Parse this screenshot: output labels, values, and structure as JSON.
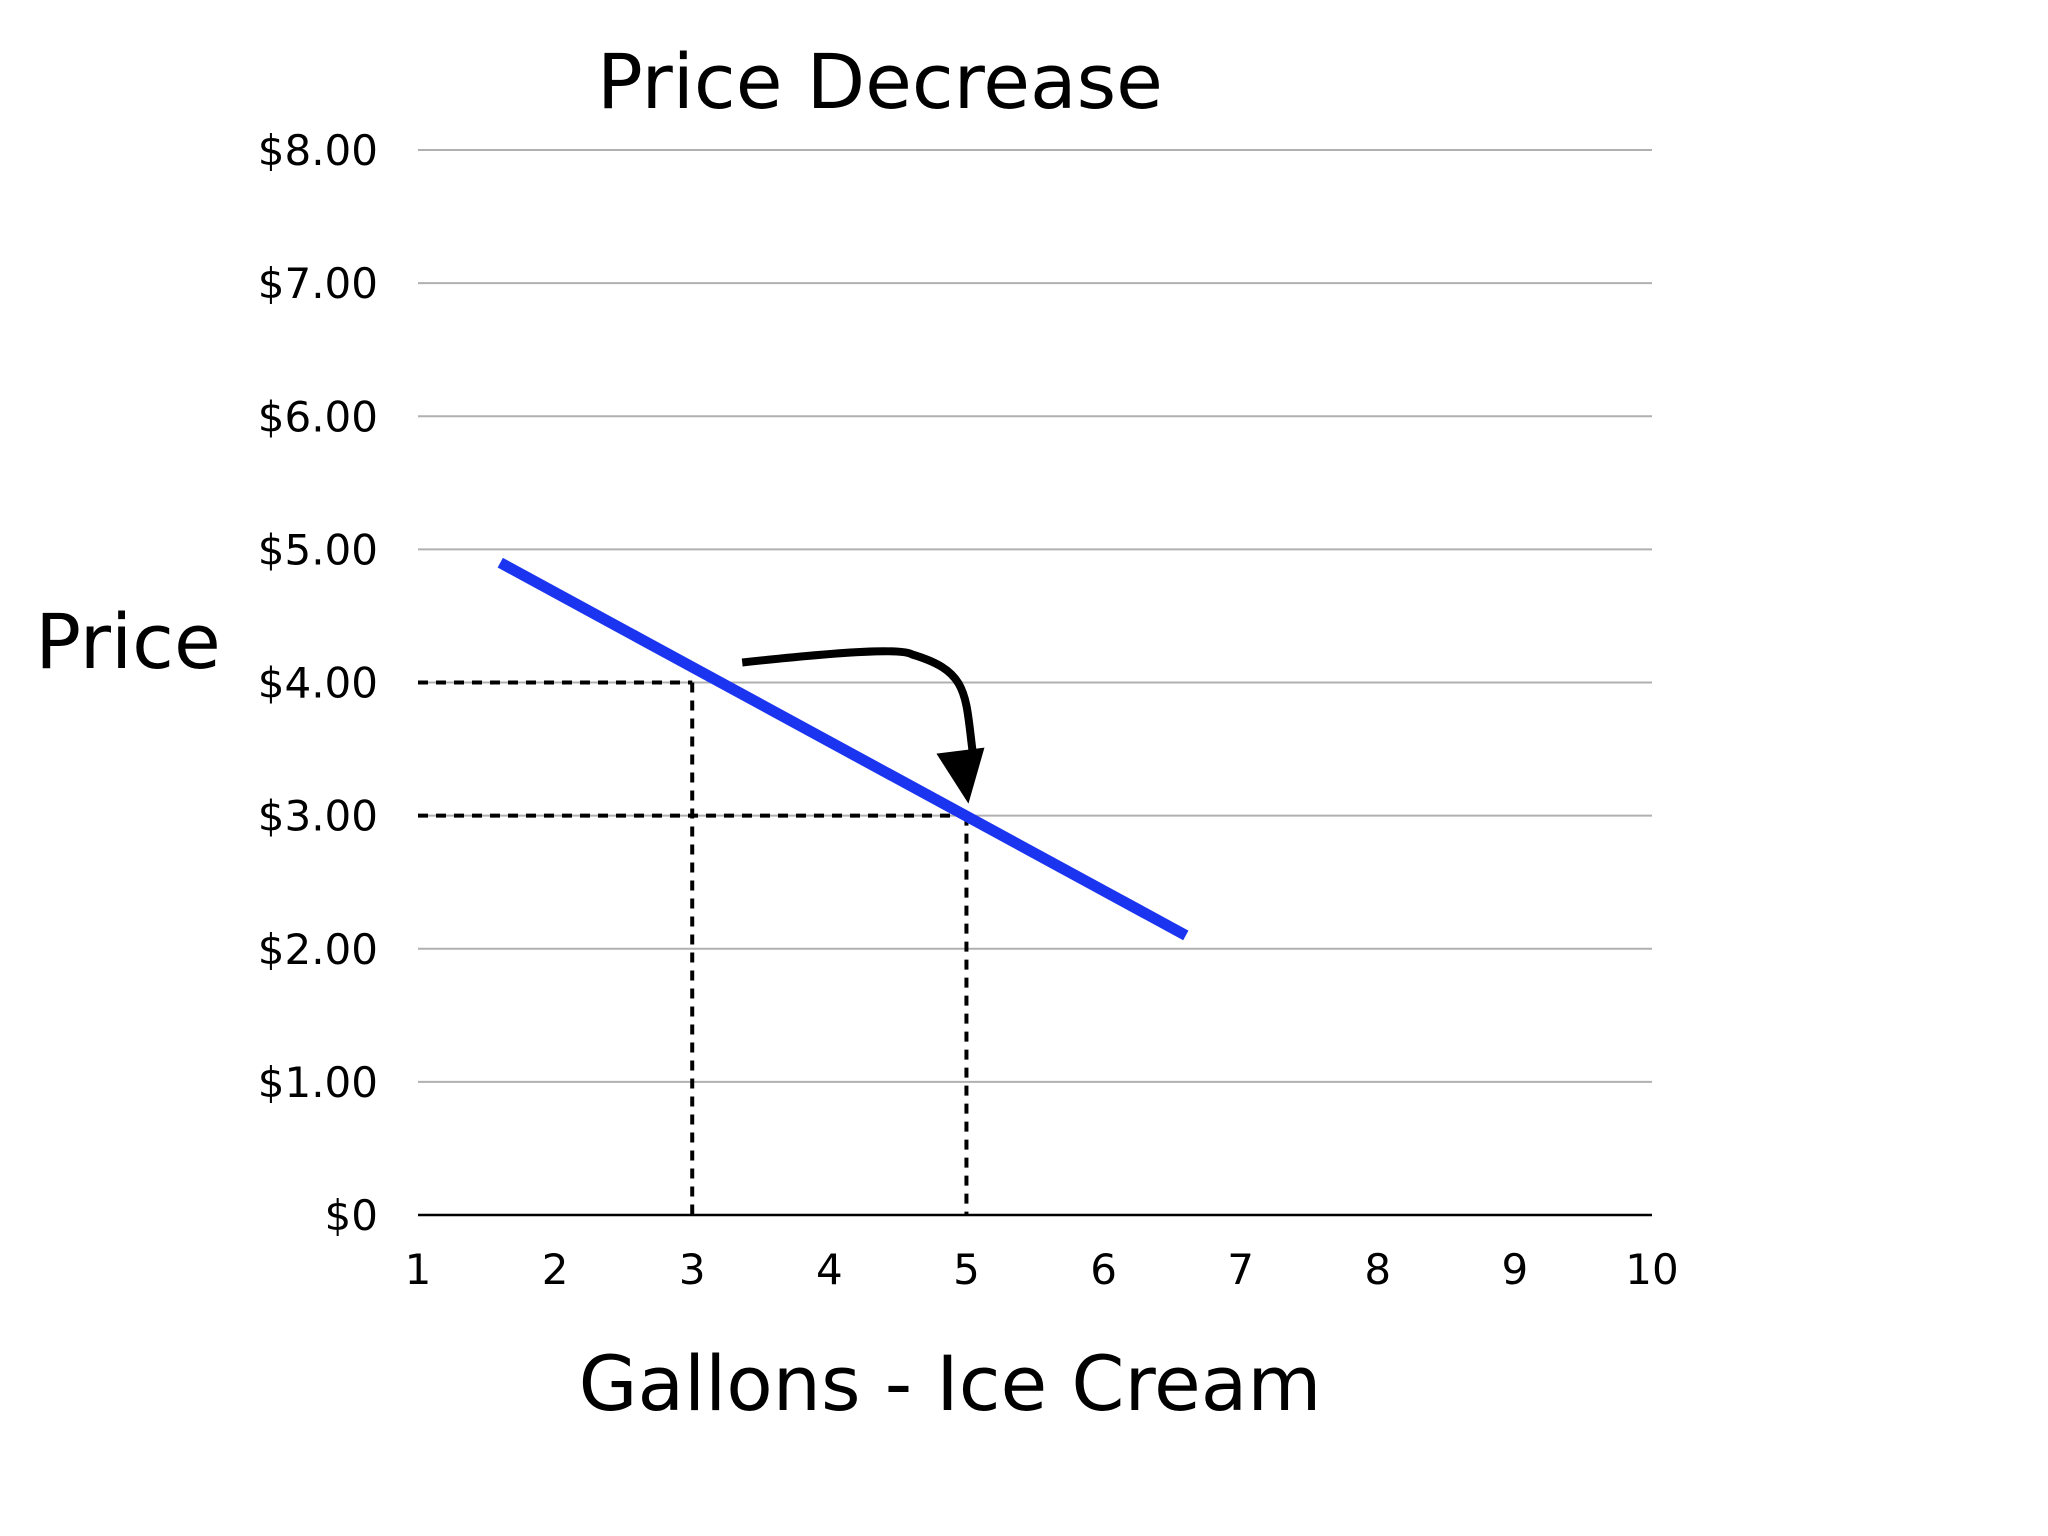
{
  "chart_data": {
    "type": "line",
    "title": "Price Decrease",
    "xlabel": "Gallons - Ice Cream",
    "ylabel": "Price",
    "x_ticks": [
      "1",
      "2",
      "3",
      "4",
      "5",
      "6",
      "7",
      "8",
      "9",
      "10"
    ],
    "y_ticks": [
      "$0",
      "$1.00",
      "$2.00",
      "$3.00",
      "$4.00",
      "$5.00",
      "$6.00",
      "$7.00",
      "$8.00"
    ],
    "xlim": [
      1,
      10
    ],
    "ylim": [
      0,
      8
    ],
    "grid": true,
    "series": [
      {
        "points": [
          {
            "x": 1.6,
            "y": 4.9
          },
          {
            "x": 6.6,
            "y": 2.1
          }
        ],
        "color": "#1a34f0"
      }
    ],
    "reference_points": [
      {
        "x": 3,
        "y": 4
      },
      {
        "x": 5,
        "y": 3
      }
    ],
    "annotation": {
      "type": "arrow",
      "meaning": "price drops from $4.00 to $3.00"
    },
    "colors": {
      "line": "#1a34f0",
      "grid": "#b0b0b0",
      "axis": "#000000",
      "guides": "#000000"
    }
  }
}
